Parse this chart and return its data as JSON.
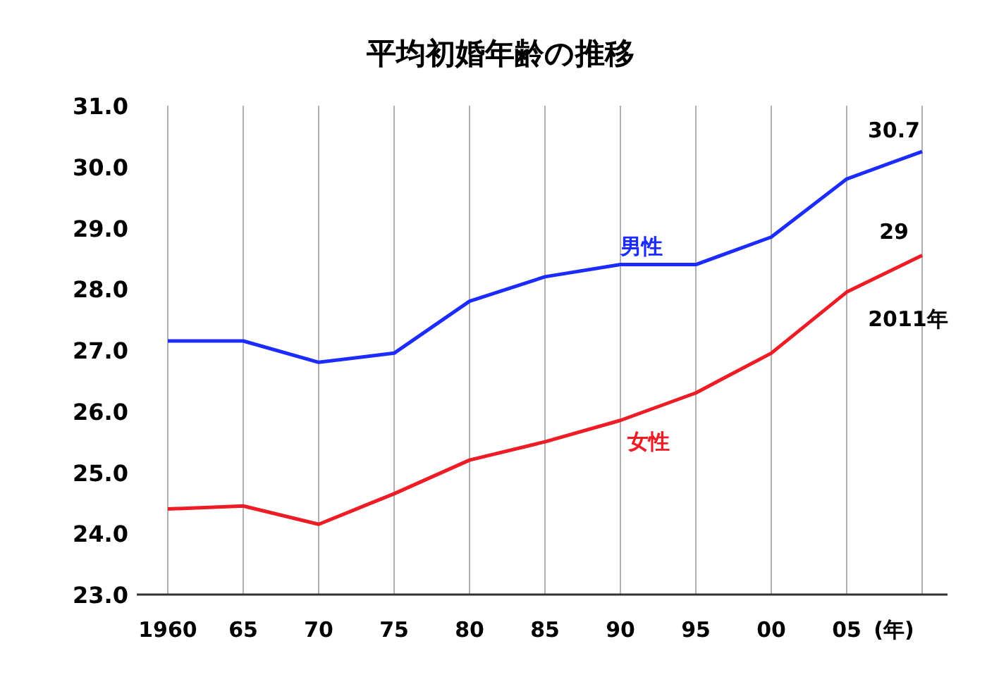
{
  "chart_data": {
    "type": "line",
    "title": "平均初婚年齢の推移",
    "xlabel": "(年)",
    "categories": [
      "1960",
      "65",
      "70",
      "75",
      "80",
      "85",
      "90",
      "95",
      "00",
      "05",
      null
    ],
    "series": [
      {
        "name": "男性",
        "color": "#1c2bff",
        "values": [
          27.15,
          27.15,
          26.8,
          26.95,
          27.8,
          28.2,
          28.4,
          28.4,
          28.85,
          29.8,
          30.25
        ]
      },
      {
        "name": "女性",
        "color": "#ee1c25",
        "values": [
          24.4,
          24.45,
          24.15,
          24.65,
          25.2,
          25.5,
          25.85,
          26.3,
          26.95,
          27.95,
          28.55
        ]
      }
    ],
    "ylim": [
      23,
      31
    ],
    "yticks": [
      {
        "value": 23,
        "label": "23.0"
      },
      {
        "value": 24,
        "label": "24.0"
      },
      {
        "value": 25,
        "label": "25.0"
      },
      {
        "value": 26,
        "label": "26.0"
      },
      {
        "value": 27,
        "label": "27.0"
      },
      {
        "value": 28,
        "label": "28.0"
      },
      {
        "value": 29,
        "label": "29.0"
      },
      {
        "value": 30,
        "label": "30.0"
      },
      {
        "value": 31,
        "label": "31.0"
      }
    ],
    "grid": "x",
    "marker": "none",
    "line_style": "solid",
    "annotations": [
      "30.7",
      "29",
      "2011年"
    ]
  }
}
